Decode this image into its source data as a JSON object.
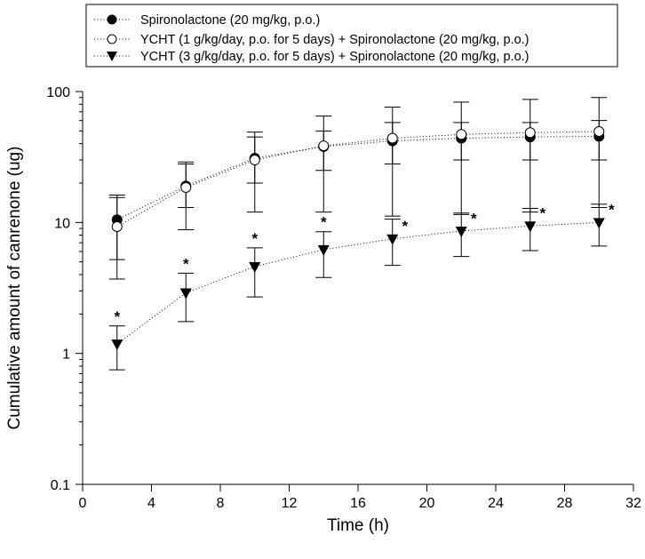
{
  "chart_data": {
    "type": "line",
    "xlabel": "Time (h)",
    "ylabel": "Cumulative amount of canrenone (ug)",
    "xlim": [
      0,
      32
    ],
    "ylim": [
      0.1,
      100
    ],
    "yscale": "log",
    "x_ticks": [
      "0",
      "4",
      "8",
      "12",
      "16",
      "20",
      "24",
      "28",
      "32"
    ],
    "y_ticks": [
      "0.1",
      "1",
      "10",
      "100"
    ],
    "x": [
      2,
      6,
      10,
      14,
      18,
      22,
      26,
      30
    ],
    "legend_position": "top",
    "series": [
      {
        "name": "Spironolactone (20 mg/kg, p.o.)",
        "marker": "filled-circle",
        "values": [
          10.5,
          19,
          31,
          38,
          42,
          44,
          45,
          45.5
        ],
        "err_upper": [
          15.5,
          28,
          45,
          50,
          58,
          58,
          58,
          60
        ],
        "err_lower": [
          5.2,
          13,
          20,
          25,
          28,
          30,
          30,
          30
        ],
        "significance": [
          "",
          "",
          "",
          "",
          "",
          "",
          "",
          ""
        ]
      },
      {
        "name": "YCHT (1 g/kg/day, p.o. for 5 days) + Spironolactone (20 mg/kg, p.o.)",
        "marker": "open-circle",
        "values": [
          9.3,
          18.5,
          30,
          38.5,
          44,
          47,
          48.5,
          49.5
        ],
        "err_upper": [
          16.2,
          29,
          49,
          65,
          76,
          83,
          87,
          90
        ],
        "err_lower": [
          3.7,
          8.8,
          12,
          12,
          11.2,
          11.5,
          12,
          13
        ],
        "significance": [
          "",
          "",
          "",
          "",
          "",
          "",
          "",
          ""
        ]
      },
      {
        "name": "YCHT (3 g/kg/day, p.o. for 5 days) + Spironolactone (20 mg/kg, p.o.)",
        "marker": "filled-triangle-down",
        "values": [
          1.18,
          2.9,
          4.6,
          6.2,
          7.5,
          8.6,
          9.4,
          10
        ],
        "err_upper": [
          1.62,
          4.1,
          6.4,
          8.5,
          10.6,
          11.8,
          12.8,
          13.8
        ],
        "err_lower": [
          0.75,
          1.75,
          2.7,
          3.8,
          4.7,
          5.5,
          6.1,
          6.6
        ],
        "significance": [
          "*",
          "*",
          "*",
          "*",
          "*",
          "*",
          "*",
          "*"
        ]
      }
    ]
  }
}
